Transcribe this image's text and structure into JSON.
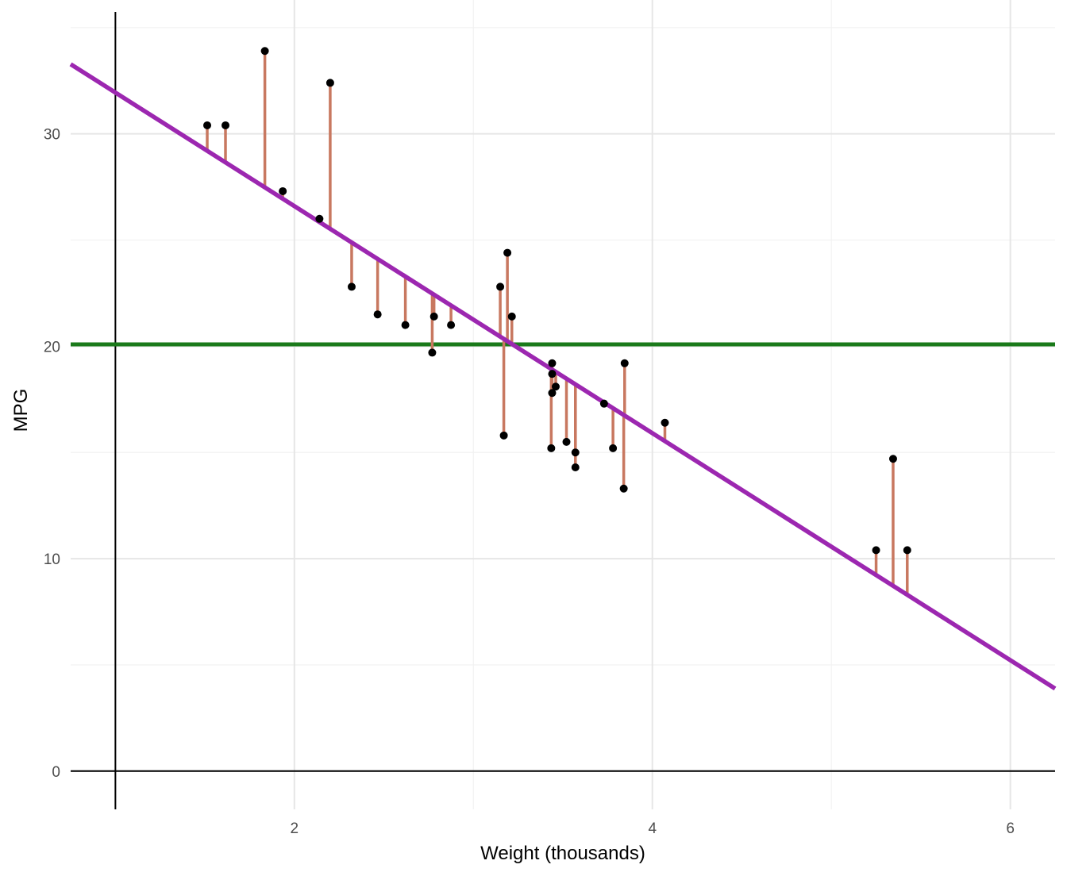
{
  "chart_data": {
    "type": "scatter",
    "title": "",
    "xlabel": "Weight (thousands)",
    "ylabel": "MPG",
    "xlim": [
      0.75,
      6.25
    ],
    "ylim": [
      -1.8,
      36.3
    ],
    "x_ticks": [
      2,
      4,
      6
    ],
    "y_ticks": [
      0,
      10,
      20,
      30
    ],
    "x_tick_labels": [
      "2",
      "4",
      "6"
    ],
    "y_tick_labels": [
      "0",
      "10",
      "20",
      "30"
    ],
    "x_minor_ticks": [
      3,
      5
    ],
    "y_minor_ticks": [
      5,
      15,
      25,
      35
    ],
    "grid": true,
    "vertical_reference_x": 1,
    "horizontal_reference_y": 0,
    "mean_line": {
      "y": 20.09,
      "color": "#1a7a1a"
    },
    "regression_line": {
      "intercept": 37.285,
      "slope": -5.344,
      "color": "#9c27b0"
    },
    "residual_color": "#c87860",
    "point_color": "#000000",
    "points": [
      {
        "x": 2.62,
        "y": 21.0
      },
      {
        "x": 2.875,
        "y": 21.0
      },
      {
        "x": 2.32,
        "y": 22.8
      },
      {
        "x": 3.215,
        "y": 21.4
      },
      {
        "x": 3.44,
        "y": 18.7
      },
      {
        "x": 3.46,
        "y": 18.1
      },
      {
        "x": 3.57,
        "y": 14.3
      },
      {
        "x": 3.19,
        "y": 24.4
      },
      {
        "x": 3.15,
        "y": 22.8
      },
      {
        "x": 3.44,
        "y": 19.2
      },
      {
        "x": 3.44,
        "y": 17.8
      },
      {
        "x": 4.07,
        "y": 16.4
      },
      {
        "x": 3.73,
        "y": 17.3
      },
      {
        "x": 3.78,
        "y": 15.2
      },
      {
        "x": 5.25,
        "y": 10.4
      },
      {
        "x": 5.424,
        "y": 10.4
      },
      {
        "x": 5.345,
        "y": 14.7
      },
      {
        "x": 2.2,
        "y": 32.4
      },
      {
        "x": 1.615,
        "y": 30.4
      },
      {
        "x": 1.835,
        "y": 33.9
      },
      {
        "x": 2.465,
        "y": 21.5
      },
      {
        "x": 3.52,
        "y": 15.5
      },
      {
        "x": 3.435,
        "y": 15.2
      },
      {
        "x": 3.84,
        "y": 13.3
      },
      {
        "x": 3.845,
        "y": 19.2
      },
      {
        "x": 1.935,
        "y": 27.3
      },
      {
        "x": 2.14,
        "y": 26.0
      },
      {
        "x": 1.513,
        "y": 30.4
      },
      {
        "x": 3.17,
        "y": 15.8
      },
      {
        "x": 2.77,
        "y": 19.7
      },
      {
        "x": 3.57,
        "y": 15.0
      },
      {
        "x": 2.78,
        "y": 21.4
      }
    ]
  }
}
